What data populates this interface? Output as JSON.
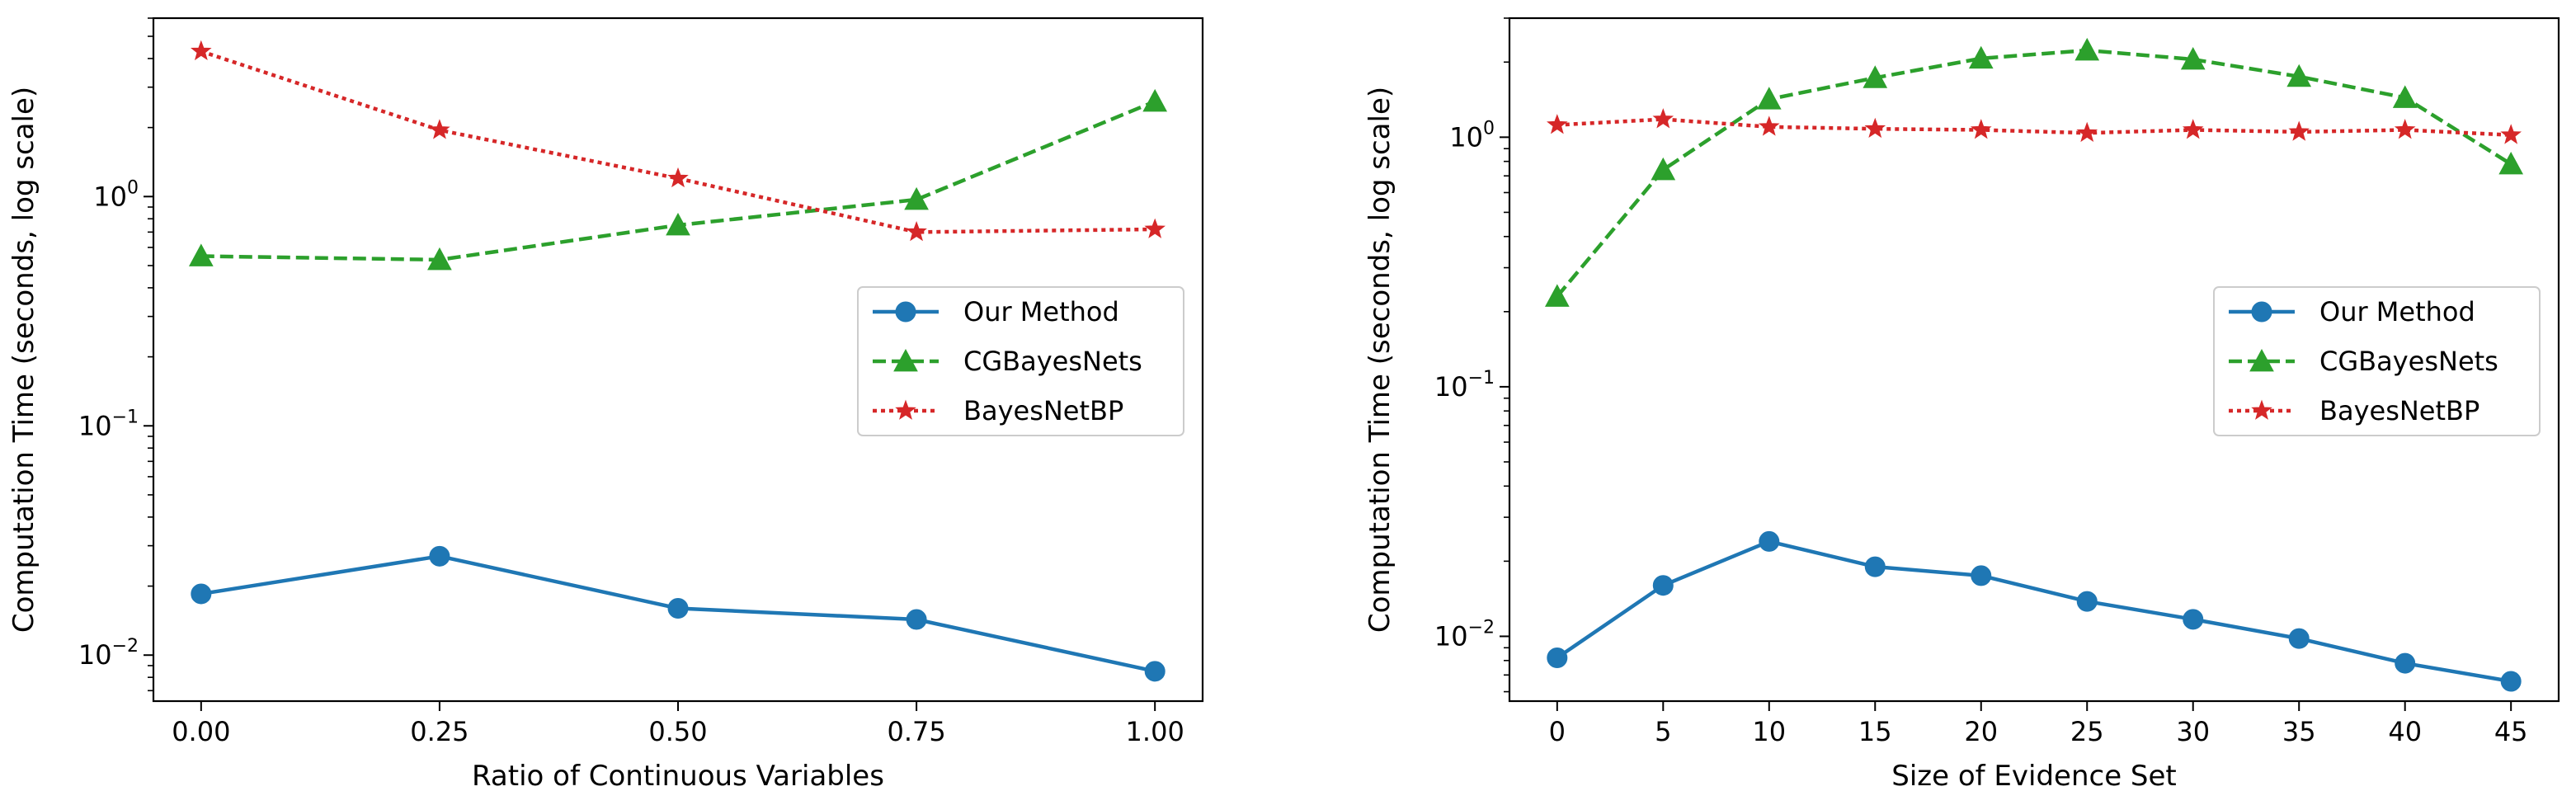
{
  "chart_data": [
    {
      "type": "line",
      "title": "",
      "xlabel": "Ratio of Continuous Variables",
      "ylabel": "Computation Time (seconds, log scale)",
      "yscale": "log",
      "x": [
        0.0,
        0.25,
        0.5,
        0.75,
        1.0
      ],
      "xticks": [
        "0.00",
        "0.25",
        "0.50",
        "0.75",
        "1.00"
      ],
      "xlim": [
        -0.05,
        1.05
      ],
      "ylim": [
        0.0063,
        6.0
      ],
      "yticks": [
        {
          "value": 0.01,
          "base": "10",
          "exp": "−2"
        },
        {
          "value": 0.1,
          "base": "10",
          "exp": "−1"
        },
        {
          "value": 1,
          "base": "10",
          "exp": "0"
        }
      ],
      "legend_position": "center-right",
      "series": [
        {
          "name": "Our Method",
          "color": "#1f77b4",
          "marker": "circle",
          "linestyle": "solid",
          "values": [
            0.0185,
            0.027,
            0.016,
            0.0143,
            0.0085
          ]
        },
        {
          "name": "CGBayesNets",
          "color": "#2ca02c",
          "marker": "triangle",
          "linestyle": "dashed",
          "values": [
            0.55,
            0.53,
            0.75,
            0.97,
            2.6
          ]
        },
        {
          "name": "BayesNetBP",
          "color": "#d62728",
          "marker": "star",
          "linestyle": "dotted",
          "values": [
            4.3,
            1.95,
            1.2,
            0.7,
            0.72
          ]
        }
      ]
    },
    {
      "type": "line",
      "title": "",
      "xlabel": "Size of Evidence Set",
      "ylabel": "Computation Time (seconds, log scale)",
      "yscale": "log",
      "x": [
        0,
        5,
        10,
        15,
        20,
        25,
        30,
        35,
        40,
        45
      ],
      "xticks": [
        "0",
        "5",
        "10",
        "15",
        "20",
        "25",
        "30",
        "35",
        "40",
        "45"
      ],
      "xlim": [
        -2.25,
        47.25
      ],
      "ylim": [
        0.0055,
        3.0
      ],
      "yticks": [
        {
          "value": 0.01,
          "base": "10",
          "exp": "−2"
        },
        {
          "value": 0.1,
          "base": "10",
          "exp": "−1"
        },
        {
          "value": 1,
          "base": "10",
          "exp": "0"
        }
      ],
      "legend_position": "center-right",
      "series": [
        {
          "name": "Our Method",
          "color": "#1f77b4",
          "marker": "circle",
          "linestyle": "solid",
          "values": [
            0.0082,
            0.016,
            0.024,
            0.019,
            0.0175,
            0.0138,
            0.0117,
            0.0098,
            0.0078,
            0.0066
          ]
        },
        {
          "name": "CGBayesNets",
          "color": "#2ca02c",
          "marker": "triangle",
          "linestyle": "dashed",
          "values": [
            0.23,
            0.74,
            1.42,
            1.73,
            2.07,
            2.23,
            2.05,
            1.75,
            1.44,
            0.78
          ]
        },
        {
          "name": "BayesNetBP",
          "color": "#d62728",
          "marker": "star",
          "linestyle": "dotted",
          "values": [
            1.12,
            1.18,
            1.1,
            1.08,
            1.07,
            1.04,
            1.07,
            1.05,
            1.07,
            1.02
          ]
        }
      ]
    }
  ]
}
